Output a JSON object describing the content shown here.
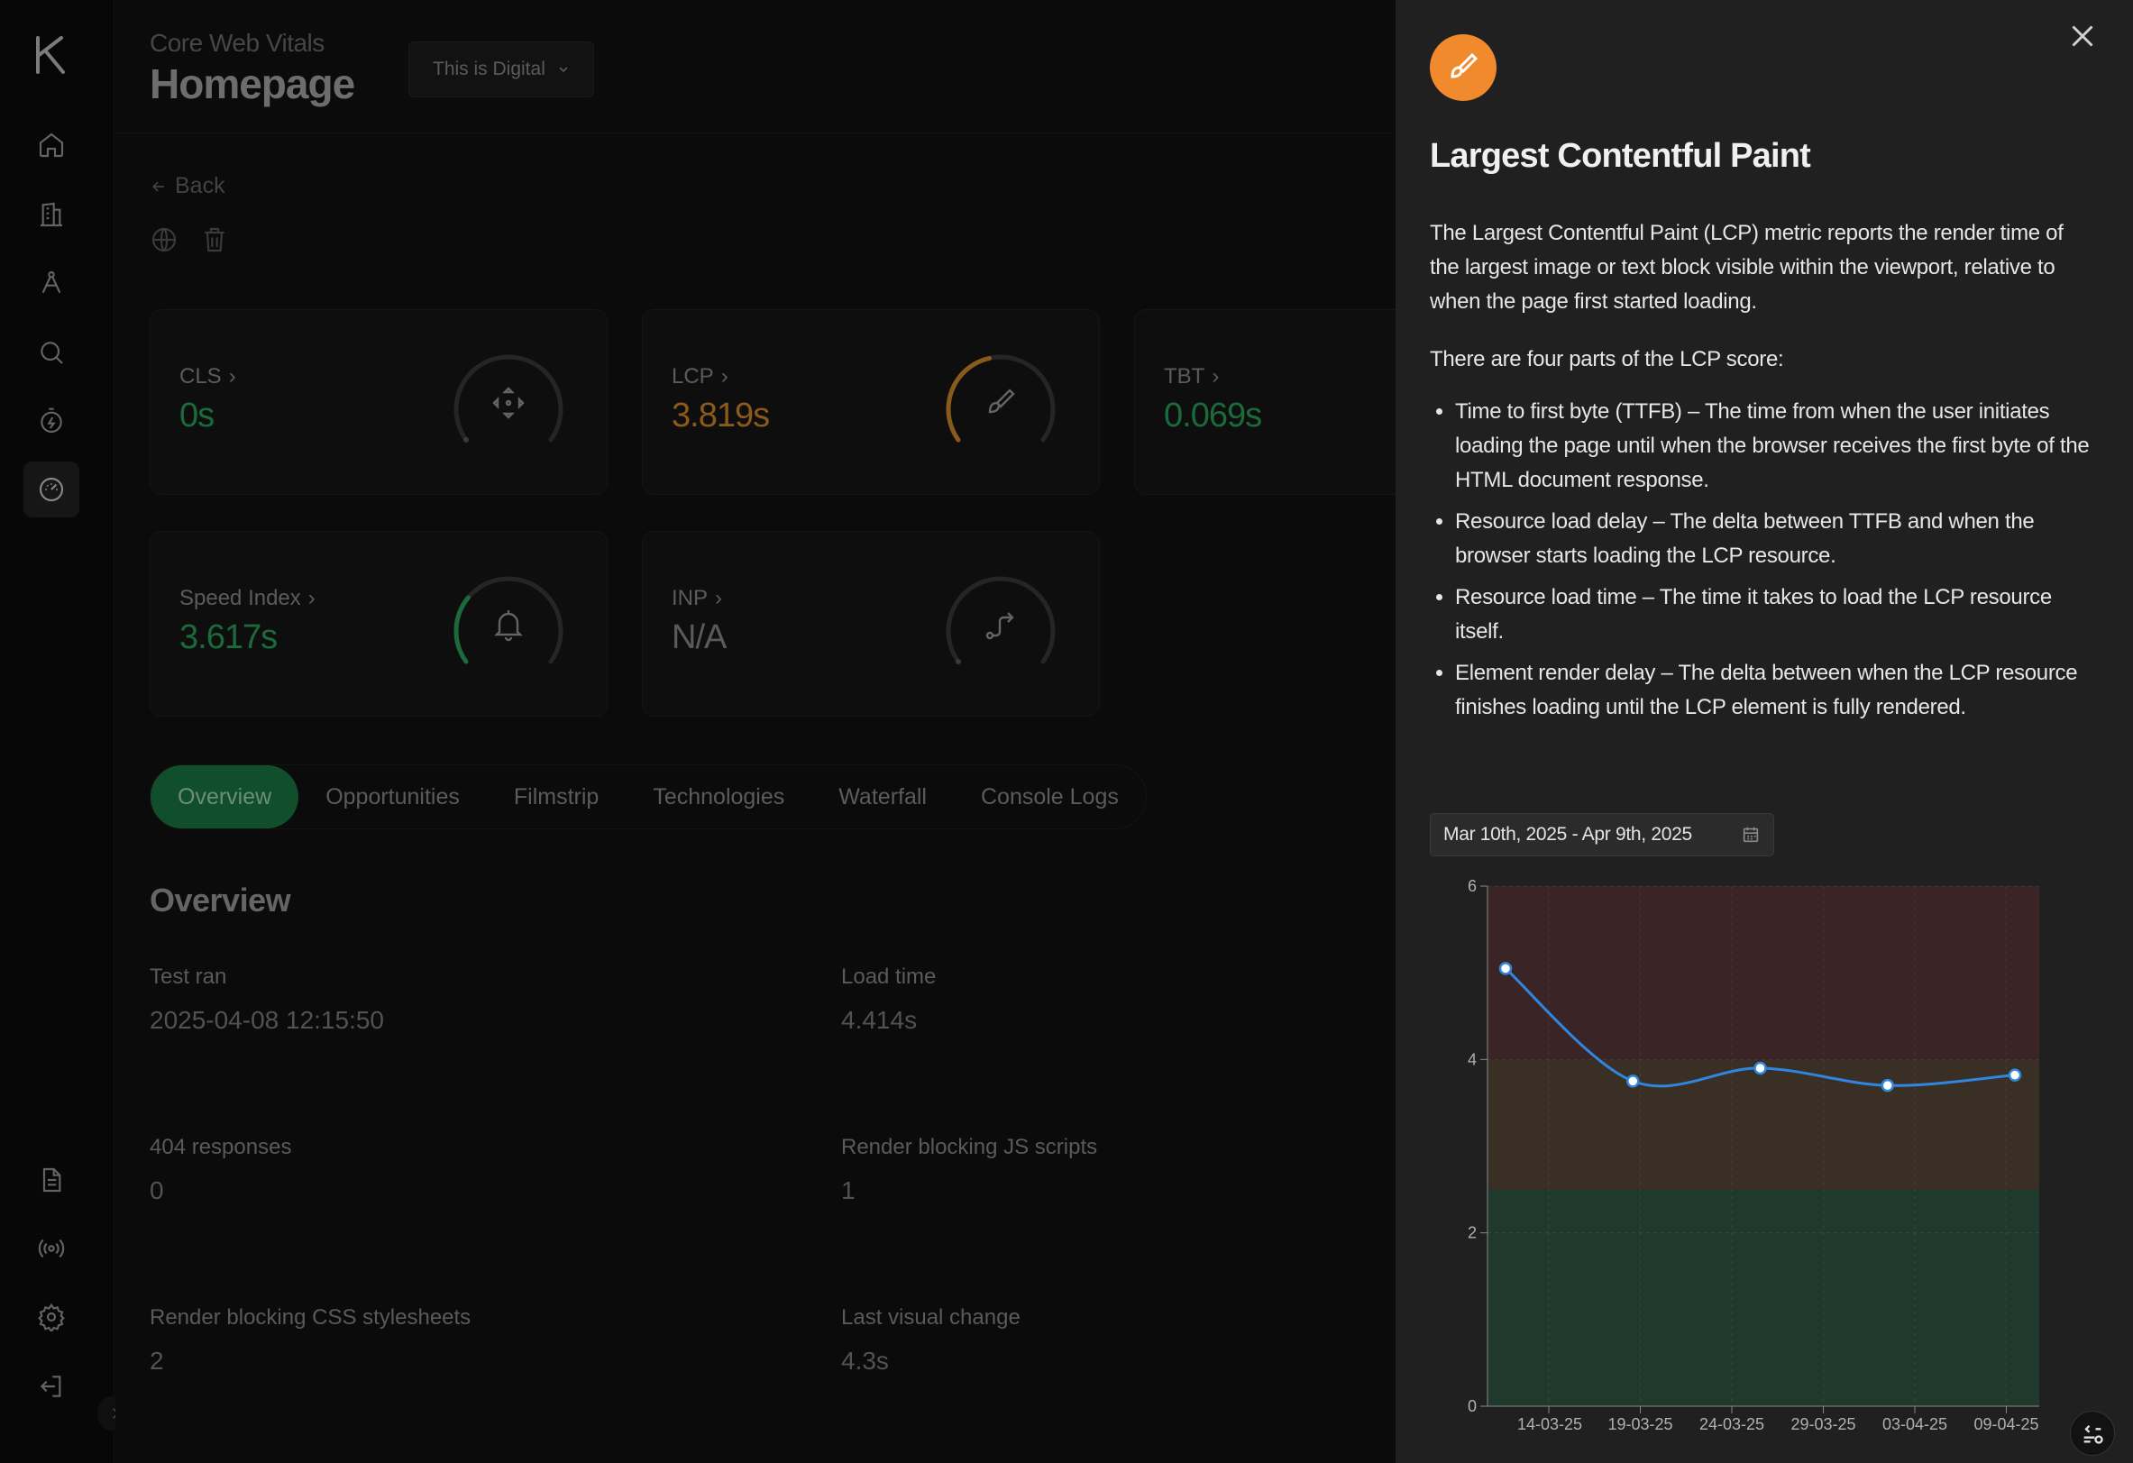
{
  "header": {
    "subtitle": "Core Web Vitals",
    "title": "Homepage",
    "site_selector": "This is Digital"
  },
  "back_label": "Back",
  "metrics": [
    {
      "label": "CLS",
      "value": "0s",
      "color": "#2aa35d",
      "gauge_fraction": 0.0,
      "icon": "move-icon"
    },
    {
      "label": "LCP",
      "value": "3.819s",
      "color": "#d48a2a",
      "gauge_fraction": 0.45,
      "icon": "brush-icon"
    },
    {
      "label": "TBT",
      "value": "0.069s",
      "color": "#2aa35d",
      "gauge_fraction": 0.05,
      "icon": "timer-icon"
    },
    {
      "label": "Speed Index",
      "value": "3.617s",
      "color": "#2aa35d",
      "gauge_fraction": 0.3,
      "icon": "bell-icon"
    },
    {
      "label": "INP",
      "value": "N/A",
      "color": "#8a8a8a",
      "gauge_fraction": 0.0,
      "icon": "route-icon"
    }
  ],
  "tabs": [
    "Overview",
    "Opportunities",
    "Filmstrip",
    "Technologies",
    "Waterfall",
    "Console Logs"
  ],
  "overview": {
    "title": "Overview",
    "stats": [
      {
        "label": "Test ran",
        "value": "2025-04-08 12:15:50"
      },
      {
        "label": "Load time",
        "value": "4.414s"
      },
      {
        "label": "404 responses",
        "value": "0"
      },
      {
        "label": "Render blocking JS scripts",
        "value": "1"
      },
      {
        "label": "Render blocking CSS stylesheets",
        "value": "2"
      },
      {
        "label": "Last visual change",
        "value": "4.3s"
      }
    ]
  },
  "drawer": {
    "title": "Largest Contentful Paint",
    "intro": "The Largest Contentful Paint (LCP) metric reports the render time of the largest image or text block visible within the viewport, relative to when the page first started loading.",
    "parts_heading": "There are four parts of the LCP score:",
    "parts": [
      "Time to first byte (TTFB) – The time from when the user initiates loading the page until when the browser receives the first byte of the HTML document response.",
      "Resource load delay – The delta between TTFB and when the browser starts loading the LCP resource.",
      "Resource load time – The time it takes to load the LCP resource itself.",
      "Element render delay – The delta between when the LCP resource finishes loading until the LCP element is fully rendered."
    ],
    "date_range": "Mar 10th, 2025 - Apr 9th, 2025",
    "accent": "#f08a2c"
  },
  "chart_data": {
    "type": "line",
    "x": [
      "2025-03-10",
      "2025-03-17",
      "2025-03-24",
      "2025-03-31",
      "2025-04-07"
    ],
    "tick_labels": [
      "14-03-25",
      "19-03-25",
      "24-03-25",
      "29-03-25",
      "03-04-25",
      "09-04-25"
    ],
    "y_ticks": [
      0,
      2,
      4,
      6
    ],
    "series": [
      {
        "values": [
          5.05,
          3.75,
          3.9,
          3.7,
          3.82
        ]
      }
    ],
    "ylim": [
      0,
      6
    ],
    "bands": [
      {
        "from": 0,
        "to": 2.5,
        "color": "#1f3a2c"
      },
      {
        "from": 2.5,
        "to": 4,
        "color": "#3a2f25"
      },
      {
        "from": 4,
        "to": 6,
        "color": "#3a2426"
      }
    ],
    "line_color": "#2f86e0",
    "grid": true
  }
}
